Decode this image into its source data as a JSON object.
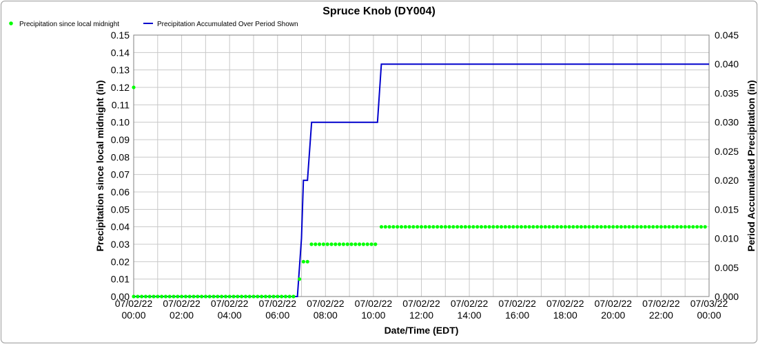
{
  "chart_data": {
    "type": "line",
    "title": "Spruce Knob (DY004)",
    "xlabel": "Date/Time (EDT)",
    "ylabel_left": "Precipitation since local midnight (in)",
    "ylabel_right": "Period Accumulated Precipitation (in)",
    "x_unit": "hours since 07/02/22 00:00",
    "xlim": [
      0,
      24
    ],
    "ylim_left": [
      0,
      0.15
    ],
    "ylim_right": [
      0,
      0.045
    ],
    "y_ticks_left": [
      "0.00",
      "0.01",
      "0.02",
      "0.03",
      "0.04",
      "0.05",
      "0.06",
      "0.07",
      "0.08",
      "0.09",
      "0.10",
      "0.11",
      "0.12",
      "0.13",
      "0.14",
      "0.15"
    ],
    "y_ticks_right": [
      "0.000",
      "0.005",
      "0.010",
      "0.015",
      "0.020",
      "0.025",
      "0.030",
      "0.035",
      "0.040",
      "0.045"
    ],
    "x_ticks": [
      {
        "date": "07/02/22",
        "time": "00:00"
      },
      {
        "date": "07/02/22",
        "time": "02:00"
      },
      {
        "date": "07/02/22",
        "time": "04:00"
      },
      {
        "date": "07/02/22",
        "time": "06:00"
      },
      {
        "date": "07/02/22",
        "time": "08:00"
      },
      {
        "date": "07/02/22",
        "time": "10:00"
      },
      {
        "date": "07/02/22",
        "time": "12:00"
      },
      {
        "date": "07/02/22",
        "time": "14:00"
      },
      {
        "date": "07/02/22",
        "time": "16:00"
      },
      {
        "date": "07/02/22",
        "time": "18:00"
      },
      {
        "date": "07/02/22",
        "time": "20:00"
      },
      {
        "date": "07/02/22",
        "time": "22:00"
      },
      {
        "date": "07/03/22",
        "time": "00:00"
      }
    ],
    "grid": true,
    "legend_placement": "top-left",
    "series": [
      {
        "name": "Precipitation since local midnight",
        "color": "#00ff00",
        "style": "points",
        "axis": "left",
        "segments": [
          {
            "start": 0.0,
            "end": 6.8333,
            "step": 0.16667,
            "value": 0.0
          },
          {
            "start": 6.9167,
            "end": 6.9167,
            "step": 0.16667,
            "value": 0.01
          },
          {
            "start": 7.0833,
            "end": 7.25,
            "step": 0.16667,
            "value": 0.02
          },
          {
            "start": 7.4167,
            "end": 10.1667,
            "step": 0.16667,
            "value": 0.03
          },
          {
            "start": 10.3333,
            "end": 24.0,
            "step": 0.16667,
            "value": 0.04
          }
        ],
        "outliers": [
          [
            0.0,
            0.12
          ]
        ]
      },
      {
        "name": "Precipitation Accumulated Over Period Shown",
        "color": "#0000cc",
        "style": "line",
        "axis": "right",
        "points": [
          [
            0.0,
            0.0
          ],
          [
            6.83,
            0.0
          ],
          [
            7.0,
            0.01
          ],
          [
            7.08,
            0.02
          ],
          [
            7.25,
            0.02
          ],
          [
            7.42,
            0.03
          ],
          [
            10.17,
            0.03
          ],
          [
            10.33,
            0.04
          ],
          [
            24.0,
            0.04
          ]
        ]
      }
    ]
  }
}
